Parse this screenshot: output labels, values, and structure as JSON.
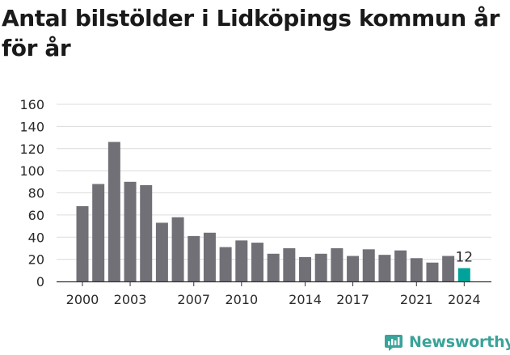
{
  "title": "Antal bilstölder i Lidköpings kommun år för år",
  "brand": {
    "name": "Newsworthy",
    "color": "#3aa39a"
  },
  "colors": {
    "bar": "#727077",
    "highlight": "#00a39a",
    "grid": "#dcdcdc",
    "text": "#2a2a2a"
  },
  "chart_data": {
    "type": "bar",
    "title": "Antal bilstölder i Lidköpings kommun år för år",
    "xlabel": "",
    "ylabel": "",
    "ylim": [
      0,
      160
    ],
    "yticks": [
      0,
      20,
      40,
      60,
      80,
      100,
      120,
      140,
      160
    ],
    "xtick_labels": [
      "2000",
      "2003",
      "2007",
      "2010",
      "2014",
      "2017",
      "2021",
      "2024"
    ],
    "grid": true,
    "categories": [
      "2000",
      "2001",
      "2002",
      "2003",
      "2004",
      "2005",
      "2006",
      "2007",
      "2008",
      "2009",
      "2010",
      "2011",
      "2012",
      "2013",
      "2014",
      "2015",
      "2016",
      "2017",
      "2018",
      "2019",
      "2020",
      "2021",
      "2022",
      "2023",
      "2024"
    ],
    "values": [
      68,
      88,
      126,
      90,
      87,
      53,
      58,
      41,
      44,
      31,
      37,
      35,
      25,
      30,
      22,
      25,
      30,
      23,
      29,
      24,
      28,
      21,
      17,
      23,
      12
    ],
    "highlight": {
      "category": "2024",
      "label": "12"
    }
  }
}
